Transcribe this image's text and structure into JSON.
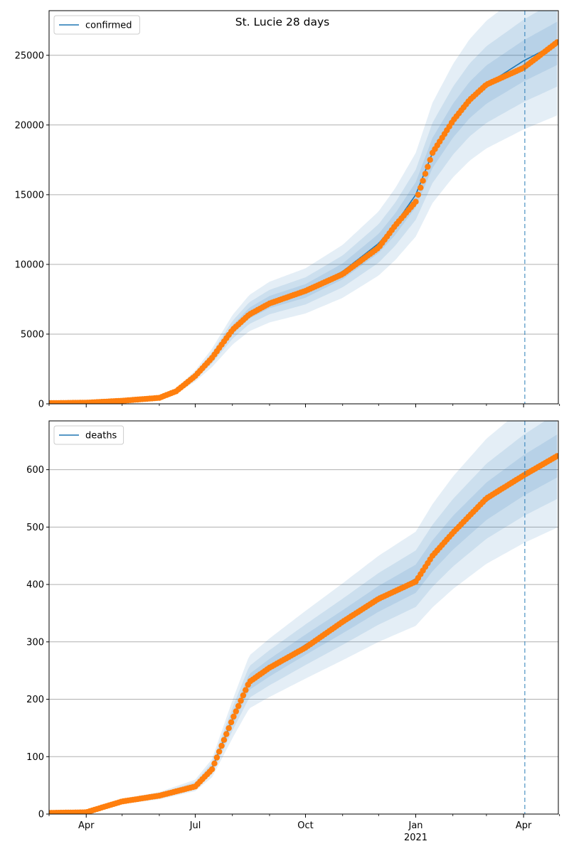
{
  "figure": {
    "suptitle": "St. Lucie 28 days",
    "x_axis": {
      "date_start": "2020-03-01",
      "date_end": "2021-04-30",
      "ticks": [
        {
          "date": "2020-04-01",
          "label": "Apr",
          "sublabel": ""
        },
        {
          "date": "2020-07-01",
          "label": "Jul",
          "sublabel": ""
        },
        {
          "date": "2020-10-01",
          "label": "Oct",
          "sublabel": ""
        },
        {
          "date": "2021-01-01",
          "label": "Jan",
          "sublabel": "2021"
        },
        {
          "date": "2021-04-01",
          "label": "Apr",
          "sublabel": ""
        }
      ],
      "minor_ticks": [
        "2020-03-01",
        "2020-05-01",
        "2020-06-01",
        "2020-08-01",
        "2020-09-01",
        "2020-11-01",
        "2020-12-01",
        "2021-02-01",
        "2021-03-01",
        "2021-05-01"
      ],
      "forecast_start": "2021-04-02"
    },
    "colors": {
      "model_line": "#1f77b4",
      "observed_points": "#ff7f0e",
      "band": "#1f77b4",
      "grid": "#b0b0b0",
      "forecast_line": "#1f77b4"
    }
  },
  "chart_data": [
    {
      "type": "line",
      "legend": "confirmed",
      "legend_position": "upper-left",
      "grid": "horizontal",
      "ylim": [
        0,
        28200
      ],
      "yticks": [
        0,
        5000,
        10000,
        15000,
        20000,
        25000
      ],
      "ytick_labels": [
        "0",
        "5000",
        "10000",
        "15000",
        "20000",
        "25000"
      ],
      "series": [
        {
          "role": "model",
          "x": [
            "2020-03-01",
            "2020-04-01",
            "2020-05-01",
            "2020-06-01",
            "2020-06-15",
            "2020-07-01",
            "2020-07-15",
            "2020-08-01",
            "2020-08-15",
            "2020-09-01",
            "2020-10-01",
            "2020-11-01",
            "2020-12-01",
            "2020-12-15",
            "2021-01-01",
            "2021-01-15",
            "2021-02-01",
            "2021-02-15",
            "2021-03-01",
            "2021-04-01",
            "2021-04-30"
          ],
          "values": [
            50,
            80,
            200,
            420,
            900,
            2000,
            3300,
            5300,
            6500,
            7300,
            8100,
            9500,
            11500,
            12900,
            15000,
            18000,
            20300,
            21800,
            22900,
            24600,
            25900
          ],
          "band_widths": [
            [
              0.06,
              0.12,
              0.2
            ],
            [
              0.06,
              0.12,
              0.2
            ],
            [
              0.06,
              0.12,
              0.2
            ]
          ]
        },
        {
          "role": "observed",
          "x": [
            "2020-03-01",
            "2020-04-01",
            "2020-05-01",
            "2020-06-01",
            "2020-06-15",
            "2020-07-01",
            "2020-07-15",
            "2020-08-01",
            "2020-08-15",
            "2020-09-01",
            "2020-10-01",
            "2020-11-01",
            "2020-12-01",
            "2020-12-15",
            "2021-01-01",
            "2021-01-15",
            "2021-02-01",
            "2021-02-15",
            "2021-03-01",
            "2021-04-01",
            "2021-04-30"
          ],
          "values": [
            50,
            80,
            220,
            430,
            900,
            2000,
            3300,
            5300,
            6400,
            7200,
            8100,
            9300,
            11200,
            12800,
            14500,
            18000,
            20300,
            21800,
            22900,
            24100,
            26000
          ]
        }
      ]
    },
    {
      "type": "line",
      "legend": "deaths",
      "legend_position": "upper-left",
      "grid": "horizontal",
      "ylim": [
        0,
        685
      ],
      "yticks": [
        0,
        100,
        200,
        300,
        400,
        500,
        600
      ],
      "ytick_labels": [
        "0",
        "100",
        "200",
        "300",
        "400",
        "500",
        "600"
      ],
      "series": [
        {
          "role": "model",
          "x": [
            "2020-03-01",
            "2020-04-01",
            "2020-04-15",
            "2020-05-01",
            "2020-06-01",
            "2020-07-01",
            "2020-07-15",
            "2020-08-01",
            "2020-08-15",
            "2020-09-01",
            "2020-10-01",
            "2020-11-01",
            "2020-12-01",
            "2021-01-01",
            "2021-01-15",
            "2021-02-01",
            "2021-03-01",
            "2021-04-01",
            "2021-04-30"
          ],
          "values": [
            2,
            3,
            12,
            22,
            32,
            50,
            80,
            165,
            230,
            255,
            295,
            335,
            375,
            410,
            450,
            490,
            545,
            590,
            625
          ],
          "band_widths": [
            [
              0.06,
              0.12,
              0.2
            ],
            [
              0.06,
              0.12,
              0.2
            ],
            [
              0.06,
              0.12,
              0.2
            ]
          ]
        },
        {
          "role": "observed",
          "x": [
            "2020-03-01",
            "2020-04-01",
            "2020-04-15",
            "2020-05-01",
            "2020-06-01",
            "2020-07-01",
            "2020-07-15",
            "2020-08-01",
            "2020-08-15",
            "2020-09-01",
            "2020-10-01",
            "2020-11-01",
            "2020-12-01",
            "2021-01-01",
            "2021-01-15",
            "2021-02-01",
            "2021-03-01",
            "2021-04-01",
            "2021-04-30"
          ],
          "values": [
            2,
            3,
            12,
            22,
            32,
            48,
            78,
            165,
            230,
            255,
            290,
            335,
            375,
            405,
            450,
            490,
            550,
            590,
            625
          ]
        }
      ]
    }
  ]
}
